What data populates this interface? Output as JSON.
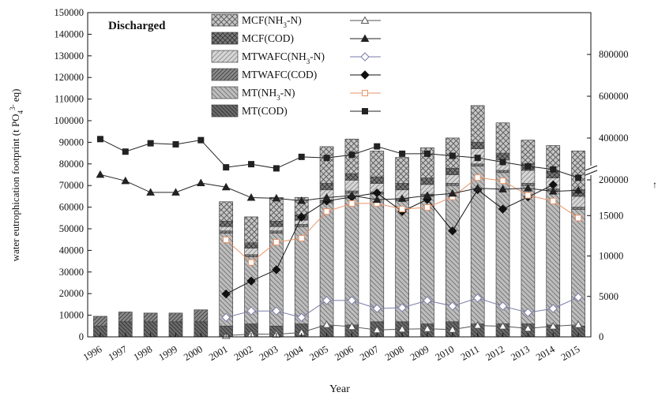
{
  "chart_data": {
    "type": "bar",
    "annotation": "Discharged",
    "xlabel": "Year",
    "ylabel": "water eutrophication footprint (t PO",
    "ylabel_sup": "3-",
    "ylabel_sub": "4",
    "ylabel_tail": " eq)",
    "categories": [
      "1996",
      "1997",
      "1998",
      "1999",
      "2000",
      "2001",
      "2002",
      "2003",
      "2004",
      "2005",
      "2006",
      "2007",
      "2008",
      "2009",
      "2010",
      "2011",
      "2012",
      "2013",
      "2014",
      "2015"
    ],
    "left_axis": {
      "ylim": [
        0,
        150000
      ],
      "ticks": [
        0,
        10000,
        20000,
        30000,
        40000,
        50000,
        60000,
        70000,
        80000,
        90000,
        100000,
        110000,
        120000,
        130000,
        140000,
        150000
      ],
      "tick_labels": [
        "0",
        "10000",
        "20000",
        "30000",
        "40000",
        "50000",
        "60000",
        "70000",
        "80000",
        "90000",
        "100000",
        "110000",
        "120000",
        "130000",
        "140000",
        "150000"
      ]
    },
    "right_axis_lower": {
      "ylim": [
        0,
        20000
      ],
      "ticks": [
        0,
        5000,
        10000,
        15000
      ],
      "tick_labels": [
        "0",
        "5000",
        "10000",
        "15000"
      ]
    },
    "right_axis_upper": {
      "ylim": [
        0,
        800000
      ],
      "ticks": [
        200000,
        400000,
        600000,
        800000
      ],
      "tick_labels": [
        "200000",
        "400000",
        "600000",
        "800000"
      ]
    },
    "legend": [
      {
        "label": "MCF(NH",
        "sub": "3",
        "tail": "-N)",
        "bar_pattern": "cross",
        "line_marker": "triangle-open"
      },
      {
        "label": "MCF(COD)",
        "sub": "",
        "tail": "",
        "bar_pattern": "dark-cross",
        "line_marker": "triangle-filled"
      },
      {
        "label": "MTWAFC(NH",
        "sub": "3",
        "tail": "-N)",
        "bar_pattern": "diag-light",
        "line_marker": "diamond-open"
      },
      {
        "label": "MTWAFC(COD)",
        "sub": "",
        "tail": "",
        "bar_pattern": "diag-dark",
        "line_marker": "diamond-filled"
      },
      {
        "label": "MT(NH",
        "sub": "3",
        "tail": "-N)",
        "bar_pattern": "diag-medium",
        "line_marker": "square-open"
      },
      {
        "label": "MT(COD)",
        "sub": "",
        "tail": "",
        "bar_pattern": "diag-darkest",
        "line_marker": "square-filled"
      }
    ],
    "bar_series": [
      {
        "name": "MT(COD)",
        "pattern": "diag-darkest",
        "values": [
          5000,
          7000,
          7000,
          7000,
          7000,
          5000,
          6000,
          5000,
          6000,
          5000,
          5500,
          7000,
          7000,
          6000,
          7000,
          6000,
          6000,
          6000,
          5500,
          5000
        ]
      },
      {
        "name": "MT(NH3-N)",
        "pattern": "diag-medium",
        "values": [
          0,
          0,
          0,
          0,
          0,
          43000,
          31000,
          43000,
          45000,
          57000,
          61000,
          59000,
          56000,
          59000,
          63000,
          73000,
          70000,
          64000,
          62000,
          54000
        ]
      },
      {
        "name": "MTWAFC(COD)",
        "pattern": "diag-dark",
        "values": [
          4500,
          4500,
          4000,
          4000,
          5500,
          1000,
          1000,
          1000,
          1000,
          1000,
          1000,
          1000,
          1000,
          1000,
          1000,
          1000,
          1000,
          1000,
          1000,
          1000
        ]
      },
      {
        "name": "MTWAFC(NH3-N)",
        "pattern": "diag-light",
        "values": [
          0,
          0,
          0,
          0,
          0,
          2000,
          3000,
          2000,
          2000,
          5000,
          5000,
          4000,
          4000,
          4500,
          4000,
          7000,
          5000,
          6000,
          5000,
          5000
        ]
      },
      {
        "name": "MCF(COD)",
        "pattern": "dark-cross",
        "values": [
          0,
          0,
          0,
          0,
          0,
          2500,
          2500,
          2500,
          2500,
          3000,
          3000,
          3000,
          3000,
          3000,
          3000,
          3000,
          3000,
          3000,
          3000,
          3000
        ]
      },
      {
        "name": "MCF(NH3-N)",
        "pattern": "cross",
        "values": [
          0,
          0,
          0,
          0,
          0,
          9000,
          12000,
          11000,
          8000,
          17000,
          16000,
          12000,
          12000,
          14000,
          14000,
          17000,
          14000,
          11000,
          12000,
          18000
        ]
      }
    ],
    "line_series_lower": [
      {
        "name": "MCF(NH3-N)",
        "marker": "triangle-open",
        "color": "#555555",
        "years": [
          "2001",
          "2002",
          "2003",
          "2004",
          "2005",
          "2006",
          "2007",
          "2008",
          "2009",
          "2010",
          "2011",
          "2012",
          "2013",
          "2014",
          "2015"
        ],
        "values": [
          150,
          350,
          300,
          550,
          1500,
          1250,
          850,
          950,
          1000,
          900,
          1400,
          1300,
          1050,
          1300,
          1500
        ]
      },
      {
        "name": "MTWAFC(NH3-N)",
        "marker": "diamond-open",
        "color": "#7a7aa8",
        "years": [
          "2001",
          "2002",
          "2003",
          "2004",
          "2005",
          "2006",
          "2007",
          "2008",
          "2009",
          "2010",
          "2011",
          "2012",
          "2013",
          "2014",
          "2015"
        ],
        "values": [
          2400,
          3200,
          3200,
          2400,
          4500,
          4500,
          3500,
          3600,
          4500,
          3800,
          4800,
          3800,
          3000,
          3500,
          4900
        ]
      },
      {
        "name": "MTWAFC(COD)",
        "marker": "diamond-filled",
        "color": "#111111",
        "years": [
          "2001",
          "2002",
          "2003",
          "2004",
          "2005",
          "2006",
          "2007",
          "2008",
          "2009",
          "2010",
          "2011",
          "2012",
          "2013",
          "2014",
          "2015"
        ],
        "values": [
          5300,
          6900,
          8300,
          14800,
          16800,
          17300,
          17800,
          15500,
          17000,
          13100,
          18200,
          15800,
          17300,
          18800,
          null
        ]
      },
      {
        "name": "MT(NH3-N)",
        "marker": "square-open",
        "color": "#e8956a",
        "years": [
          "2001",
          "2002",
          "2003",
          "2004",
          "2005",
          "2006",
          "2007",
          "2008",
          "2009",
          "2010",
          "2011",
          "2012",
          "2013",
          "2014",
          "2015"
        ],
        "values": [
          12000,
          9200,
          11700,
          12200,
          15500,
          16500,
          16500,
          15800,
          16000,
          17300,
          19700,
          19300,
          17500,
          16800,
          14700
        ]
      }
    ],
    "line_series_upper": [
      {
        "name": "MT(COD)",
        "marker": "square-filled",
        "color": "#222222",
        "x": [
          "1996",
          "1997",
          "1998",
          "1999",
          "2000",
          "2001",
          "2002",
          "2003",
          "2004",
          "2005",
          "2006",
          "2007",
          "2008",
          "2009",
          "2010",
          "2011",
          "2012",
          "2013",
          "2014",
          "2015"
        ],
        "values": [
          395000,
          335000,
          375000,
          370000,
          390000,
          260000,
          275000,
          255000,
          310000,
          305000,
          320000,
          360000,
          325000,
          325000,
          315000,
          305000,
          285000,
          265000,
          250000,
          210000
        ]
      },
      {
        "name": "MCF(COD)",
        "marker": "triangle-filled",
        "color": "#222222",
        "x": [
          "1996",
          "1997",
          "1998",
          "1999",
          "2000",
          "2001",
          "2002",
          "2003",
          "2004",
          "2005",
          "2006",
          "2007",
          "2008",
          "2009",
          "2010",
          "2011",
          "2012",
          "2013",
          "2014",
          "2015"
        ],
        "values": [
          225000,
          195000,
          140000,
          140000,
          185000,
          165000,
          115000,
          112000,
          100000,
          115000,
          125000,
          105000,
          110000,
          125000,
          135000,
          160000,
          155000,
          160000,
          145000,
          150000
        ]
      }
    ]
  }
}
